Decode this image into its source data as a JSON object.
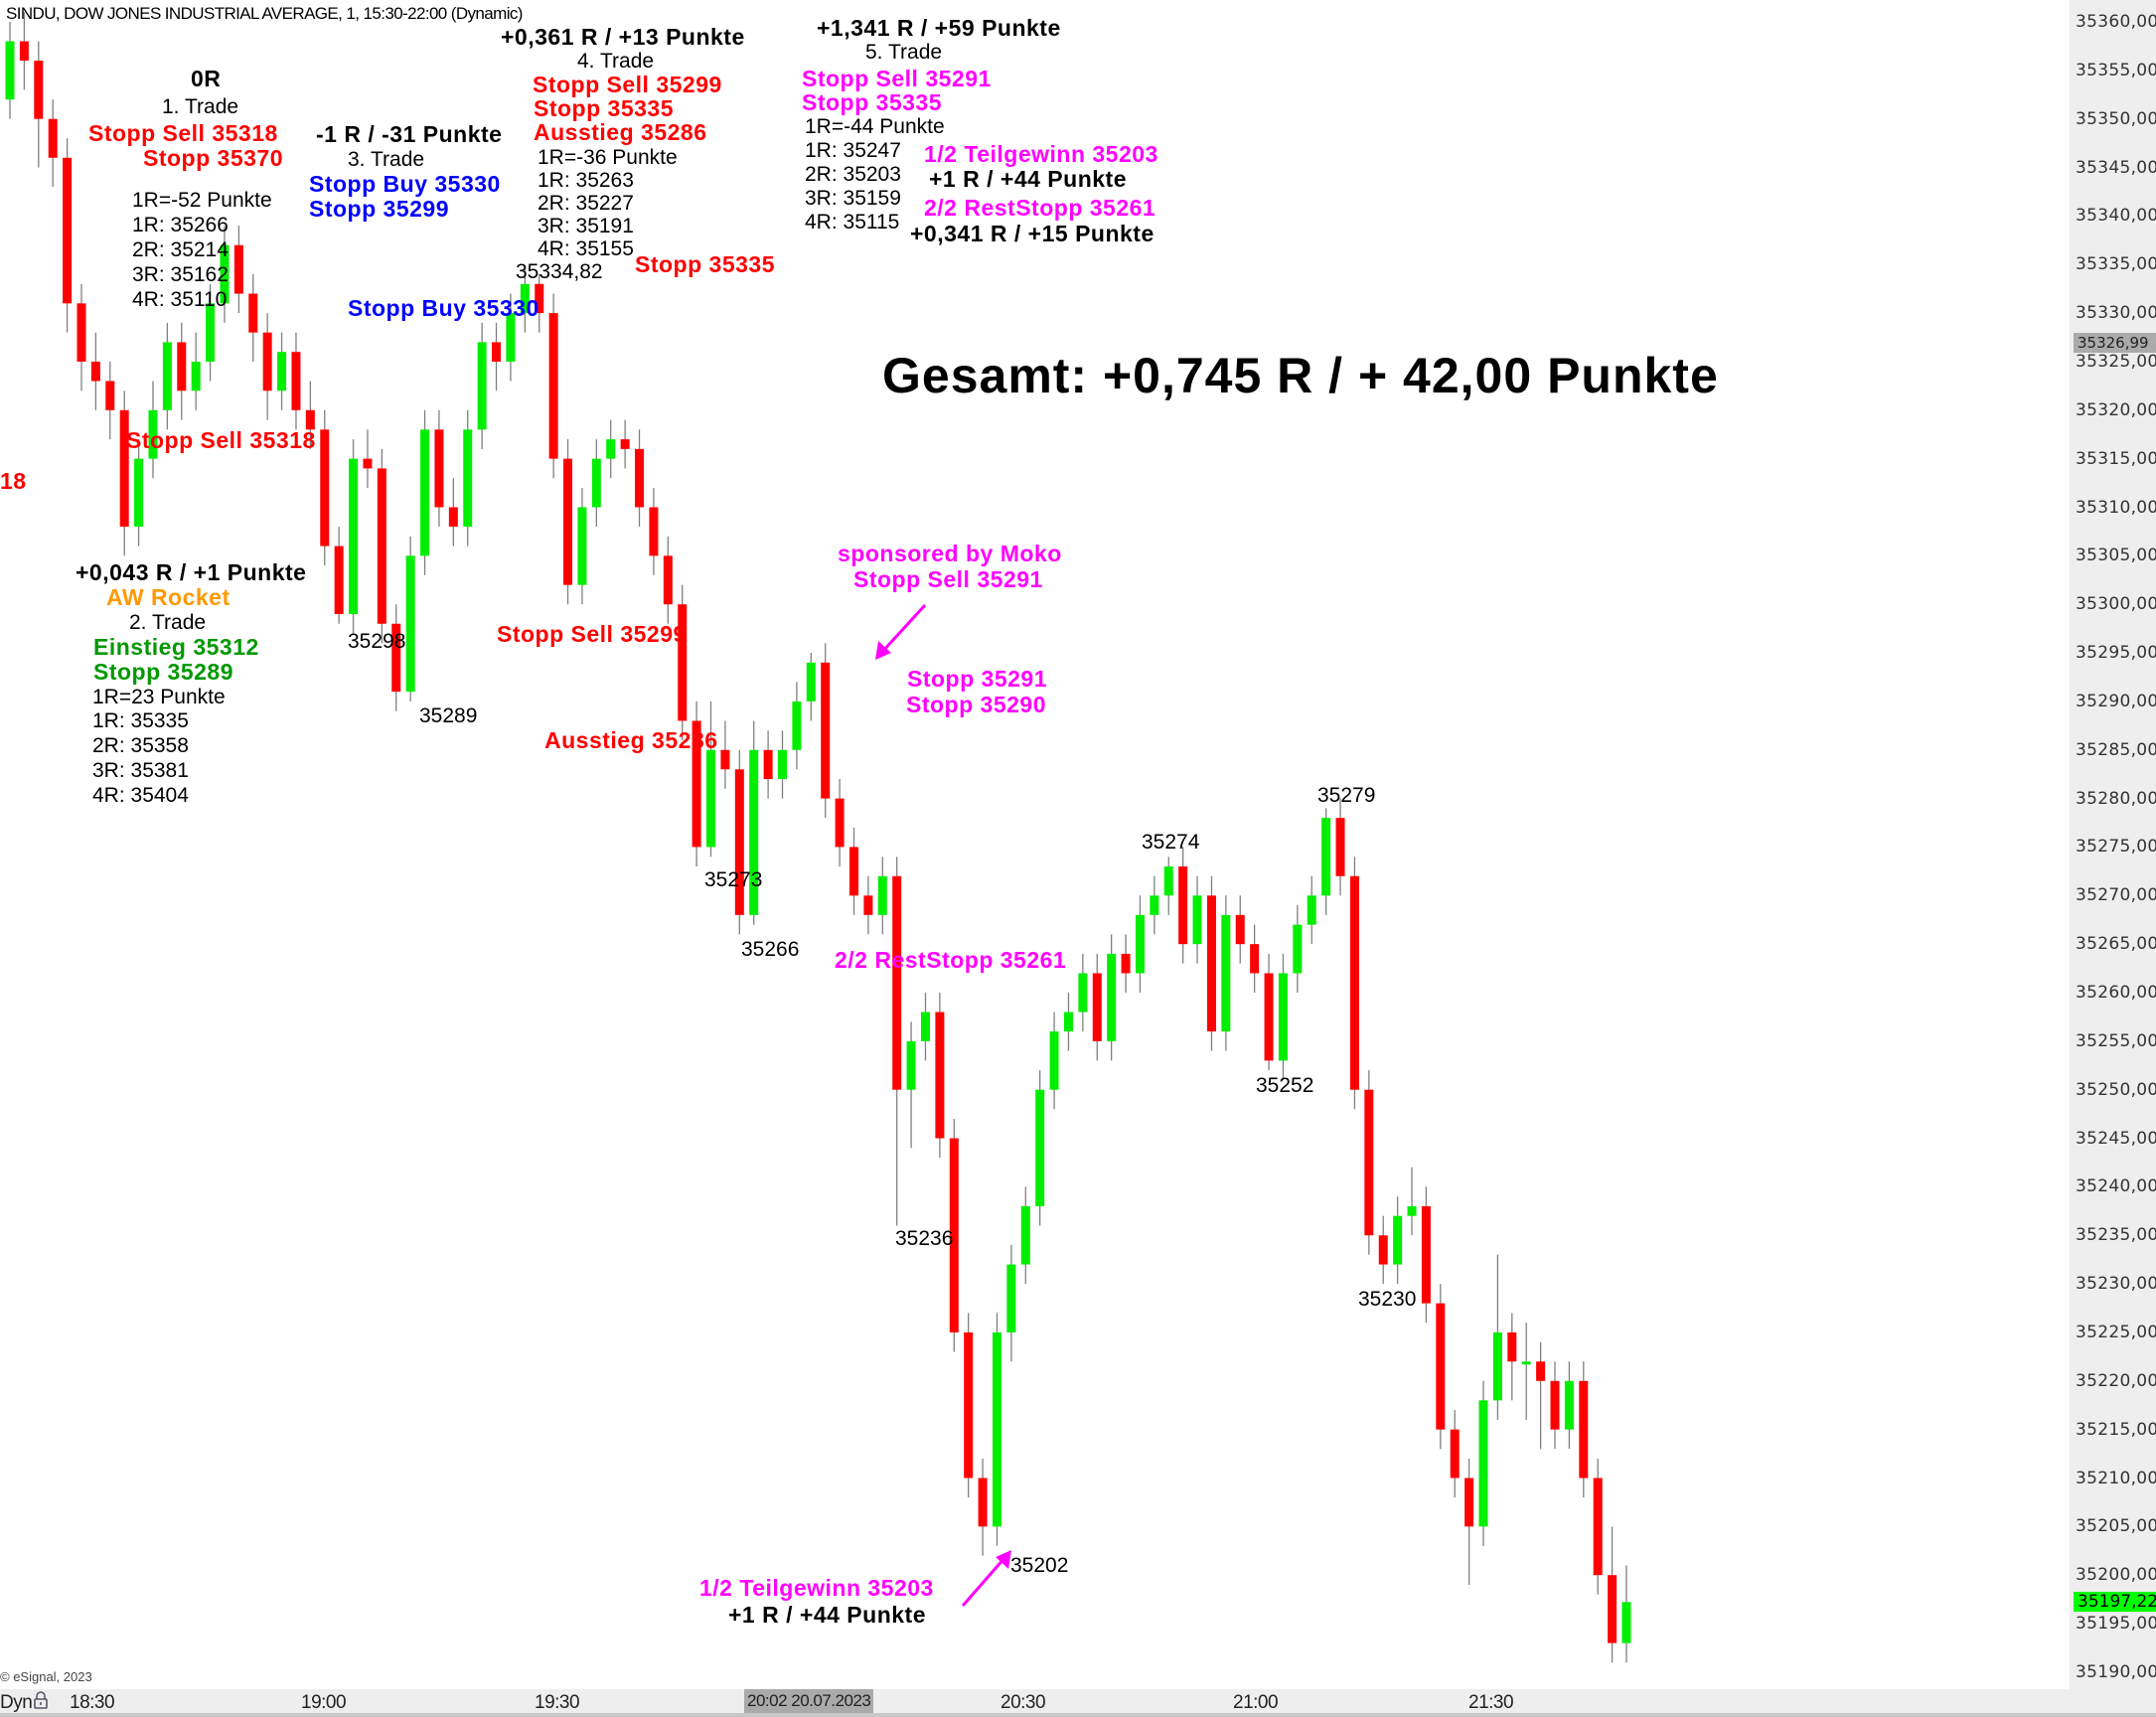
{
  "header": {
    "title": "SINDU, DOW JONES INDUSTRIAL AVERAGE, 1, 15:30-22:00 (Dynamic)"
  },
  "colors": {
    "up": "#00ee00",
    "down": "#ff0000",
    "wick": "#808080",
    "red": "#ff0000",
    "blue": "#0000ff",
    "magenta": "#ff00ff",
    "green": "#009900",
    "orange": "#ff9900",
    "last_price_bg": "#00ff00",
    "crosshair_bg": "#aaaaaa"
  },
  "annotations": {
    "trade1": {
      "result": "0R",
      "title": "1. Trade",
      "entry": "Stopp Sell 35318",
      "stop": "Stopp 35370",
      "risk": "1R=-52 Punkte",
      "r1": "1R: 35266",
      "r2": "2R: 35214",
      "r3": "3R: 35162",
      "r4": "4R: 35110",
      "entry_repeat": "Stopp Sell 35318",
      "entry_cut": "18"
    },
    "trade2": {
      "result": "+0,043 R / +1 Punkte",
      "setup": "AW Rocket",
      "title": "2. Trade",
      "entry": "Einstieg 35312",
      "stop": "Stopp 35289",
      "risk": "1R=23 Punkte",
      "r1": "1R: 35335",
      "r2": "2R: 35358",
      "r3": "3R: 35381",
      "r4": "4R: 35404"
    },
    "trade3": {
      "result": "-1 R / -31 Punkte",
      "title": "3. Trade",
      "entry": "Stopp Buy 35330",
      "stop": "Stopp 35299",
      "entry_repeat": "Stopp Buy 35330"
    },
    "trade4": {
      "result": "+0,361 R / +13 Punkte",
      "title": "4. Trade",
      "entry": "Stopp Sell 35299",
      "stop": "Stopp 35335",
      "exit": "Ausstieg 35286",
      "risk": "1R=-36 Punkte",
      "r1": "1R: 35263",
      "r2": "2R: 35227",
      "r3": "3R: 35191",
      "r4": "4R: 35155",
      "high_label": "35334,82",
      "stop_repeat": "Stopp 35335",
      "entry_repeat": "Stopp Sell 35299",
      "exit_repeat": "Ausstieg 35286"
    },
    "trade5": {
      "result": "+1,341 R / +59 Punkte",
      "title": "5. Trade",
      "entry": "Stopp Sell 35291",
      "stop": "Stopp 35335",
      "risk": "1R=-44 Punkte",
      "r1": "1R: 35247",
      "r2": "2R: 35203",
      "r3": "3R: 35159",
      "r4": "4R: 35115",
      "partial": "1/2 Teilgewinn 35203",
      "partial_result": "+1 R / +44 Punkte",
      "rest": "2/2 RestStopp 35261",
      "rest_result": "+0,341 R / +15 Punkte",
      "sponsor": "sponsored by Moko",
      "entry_repeat": "Stopp Sell 35291",
      "stop_a": "Stopp 35291",
      "stop_b": "Stopp 35290",
      "rest_repeat": "2/2 RestStopp 35261",
      "partial_repeat": "1/2 Teilgewinn 35203",
      "partial_result_repeat": "+1 R / +44 Punkte"
    },
    "total": "Gesamt: +0,745 R / + 42,00 Punkte",
    "swing_labels": {
      "l35298": "35298",
      "l35289": "35289",
      "l35273": "35273",
      "l35266": "35266",
      "l35274": "35274",
      "l35279": "35279",
      "l35252": "35252",
      "l35236": "35236",
      "l35230": "35230",
      "l35202": "35202"
    }
  },
  "footer": {
    "copyright": "© eSignal, 2023"
  },
  "price_axis": {
    "labels": [
      "35360,00",
      "35355,00",
      "35350,00",
      "35345,00",
      "35340,00",
      "35335,00",
      "35330,00",
      "35325,00",
      "35320,00",
      "35315,00",
      "35310,00",
      "35305,00",
      "35300,00",
      "35295,00",
      "35290,00",
      "35285,00",
      "35280,00",
      "35275,00",
      "35270,00",
      "35265,00",
      "35260,00",
      "35255,00",
      "35250,00",
      "35245,00",
      "35240,00",
      "35235,00",
      "35230,00",
      "35225,00",
      "35220,00",
      "35215,00",
      "35210,00",
      "35205,00",
      "35200,00",
      "35195,00",
      "35190,00"
    ],
    "crosshair_price": "35326,99",
    "last_price": "35197,22"
  },
  "time_axis": {
    "mode": "Dyn",
    "labels": [
      "18:30",
      "19:00",
      "19:30",
      "20:30",
      "21:00",
      "21:30"
    ],
    "crosshair_time": "20:02 20.07.2023"
  },
  "chart_data": {
    "type": "candlestick",
    "title": "SINDU, DOW JONES INDUSTRIAL AVERAGE, 1, 15:30-22:00 (Dynamic)",
    "interval": "1",
    "ylim": [
      35190,
      35360
    ],
    "xlim": [
      "18:18",
      "21:48"
    ],
    "x_ticks": [
      "18:30",
      "19:00",
      "19:30",
      "20:30",
      "21:00",
      "21:30"
    ],
    "grid": false,
    "ohlc": [
      [
        35352,
        35360,
        35350,
        35358
      ],
      [
        35358,
        35361,
        35353,
        35356
      ],
      [
        35356,
        35358,
        35345,
        35350
      ],
      [
        35350,
        35352,
        35343,
        35346
      ],
      [
        35346,
        35348,
        35328,
        35331
      ],
      [
        35331,
        35333,
        35322,
        35325
      ],
      [
        35325,
        35328,
        35320,
        35323
      ],
      [
        35323,
        35325,
        35317,
        35320
      ],
      [
        35320,
        35322,
        35305,
        35308
      ],
      [
        35308,
        35317,
        35306,
        35315
      ],
      [
        35315,
        35323,
        35313,
        35320
      ],
      [
        35320,
        35329,
        35318,
        35327
      ],
      [
        35327,
        35329,
        35319,
        35322
      ],
      [
        35322,
        35328,
        35320,
        35325
      ],
      [
        35325,
        35333,
        35323,
        35331
      ],
      [
        35331,
        35339,
        35329,
        35337
      ],
      [
        35337,
        35339,
        35330,
        35332
      ],
      [
        35332,
        35334,
        35325,
        35328
      ],
      [
        35328,
        35330,
        35319,
        35322
      ],
      [
        35322,
        35328,
        35320,
        35326
      ],
      [
        35326,
        35328,
        35318,
        35320
      ],
      [
        35320,
        35323,
        35316,
        35318
      ],
      [
        35318,
        35320,
        35304,
        35306
      ],
      [
        35306,
        35308,
        35298,
        35299
      ],
      [
        35299,
        35317,
        35297,
        35315
      ],
      [
        35315,
        35318,
        35312,
        35314
      ],
      [
        35314,
        35316,
        35296,
        35298
      ],
      [
        35298,
        35300,
        35289,
        35291
      ],
      [
        35291,
        35307,
        35290,
        35305
      ],
      [
        35305,
        35320,
        35303,
        35318
      ],
      [
        35318,
        35320,
        35308,
        35310
      ],
      [
        35310,
        35313,
        35306,
        35308
      ],
      [
        35308,
        35320,
        35306,
        35318
      ],
      [
        35318,
        35329,
        35316,
        35327
      ],
      [
        35327,
        35329,
        35322,
        35325
      ],
      [
        35325,
        35332,
        35323,
        35330
      ],
      [
        35330,
        35334.82,
        35328,
        35333
      ],
      [
        35333,
        35334,
        35328,
        35330
      ],
      [
        35330,
        35332,
        35313,
        35315
      ],
      [
        35315,
        35317,
        35300,
        35302
      ],
      [
        35302,
        35312,
        35300,
        35310
      ],
      [
        35310,
        35317,
        35308,
        35315
      ],
      [
        35315,
        35319,
        35313,
        35317
      ],
      [
        35317,
        35319,
        35314,
        35316
      ],
      [
        35316,
        35318,
        35308,
        35310
      ],
      [
        35310,
        35312,
        35303,
        35305
      ],
      [
        35305,
        35307,
        35298,
        35300
      ],
      [
        35300,
        35302,
        35286,
        35288
      ],
      [
        35288,
        35290,
        35273,
        35275
      ],
      [
        35275,
        35290,
        35274,
        35285
      ],
      [
        35285,
        35288,
        35281,
        35283
      ],
      [
        35283,
        35285,
        35266,
        35268
      ],
      [
        35268,
        35288,
        35267,
        35285
      ],
      [
        35285,
        35287,
        35280,
        35282
      ],
      [
        35282,
        35287,
        35280,
        35285
      ],
      [
        35285,
        35292,
        35283,
        35290
      ],
      [
        35290,
        35295,
        35288,
        35294
      ],
      [
        35294,
        35296,
        35278,
        35280
      ],
      [
        35280,
        35282,
        35273,
        35275
      ],
      [
        35275,
        35277,
        35268,
        35270
      ],
      [
        35270,
        35272,
        35266,
        35268
      ],
      [
        35268,
        35274,
        35266,
        35272
      ],
      [
        35272,
        35274,
        35236,
        35250
      ],
      [
        35250,
        35257,
        35244,
        35255
      ],
      [
        35255,
        35260,
        35253,
        35258
      ],
      [
        35258,
        35260,
        35243,
        35245
      ],
      [
        35245,
        35247,
        35223,
        35225
      ],
      [
        35225,
        35227,
        35208,
        35210
      ],
      [
        35210,
        35212,
        35202,
        35205
      ],
      [
        35205,
        35227,
        35203,
        35225
      ],
      [
        35225,
        35234,
        35222,
        35232
      ],
      [
        35232,
        35240,
        35230,
        35238
      ],
      [
        35238,
        35252,
        35236,
        35250
      ],
      [
        35250,
        35258,
        35248,
        35256
      ],
      [
        35256,
        35260,
        35254,
        35258
      ],
      [
        35258,
        35264,
        35256,
        35262
      ],
      [
        35262,
        35264,
        35253,
        35255
      ],
      [
        35255,
        35266,
        35253,
        35264
      ],
      [
        35264,
        35266,
        35260,
        35262
      ],
      [
        35262,
        35270,
        35260,
        35268
      ],
      [
        35268,
        35272,
        35266,
        35270
      ],
      [
        35270,
        35274,
        35268,
        35273
      ],
      [
        35273,
        35275,
        35263,
        35265
      ],
      [
        35265,
        35272,
        35263,
        35270
      ],
      [
        35270,
        35272,
        35254,
        35256
      ],
      [
        35256,
        35270,
        35254,
        35268
      ],
      [
        35268,
        35270,
        35263,
        35265
      ],
      [
        35265,
        35267,
        35260,
        35262
      ],
      [
        35262,
        35264,
        35252,
        35253
      ],
      [
        35253,
        35264,
        35251,
        35262
      ],
      [
        35262,
        35269,
        35260,
        35267
      ],
      [
        35267,
        35272,
        35265,
        35270
      ],
      [
        35270,
        35279,
        35268,
        35278
      ],
      [
        35278,
        35280,
        35270,
        35272
      ],
      [
        35272,
        35274,
        35248,
        35250
      ],
      [
        35250,
        35252,
        35233,
        35235
      ],
      [
        35235,
        35237,
        35230,
        35232
      ],
      [
        35232,
        35239,
        35230,
        35237
      ],
      [
        35237,
        35242,
        35235,
        35238
      ],
      [
        35238,
        35240,
        35226,
        35228
      ],
      [
        35228,
        35230,
        35213,
        35215
      ],
      [
        35215,
        35217,
        35208,
        35210
      ],
      [
        35210,
        35212,
        35199,
        35205
      ],
      [
        35205,
        35220,
        35203,
        35218
      ],
      [
        35218,
        35233,
        35216,
        35225
      ],
      [
        35225,
        35227,
        35218,
        35222
      ],
      [
        35222,
        35226,
        35216,
        35222
      ],
      [
        35222,
        35224,
        35213,
        35220
      ],
      [
        35220,
        35222,
        35213,
        35215
      ],
      [
        35215,
        35222,
        35213,
        35220
      ],
      [
        35220,
        35222,
        35208,
        35210
      ],
      [
        35210,
        35212,
        35198,
        35200
      ],
      [
        35200,
        35205,
        35191,
        35193
      ],
      [
        35193,
        35201,
        35191,
        35197.22
      ]
    ]
  }
}
